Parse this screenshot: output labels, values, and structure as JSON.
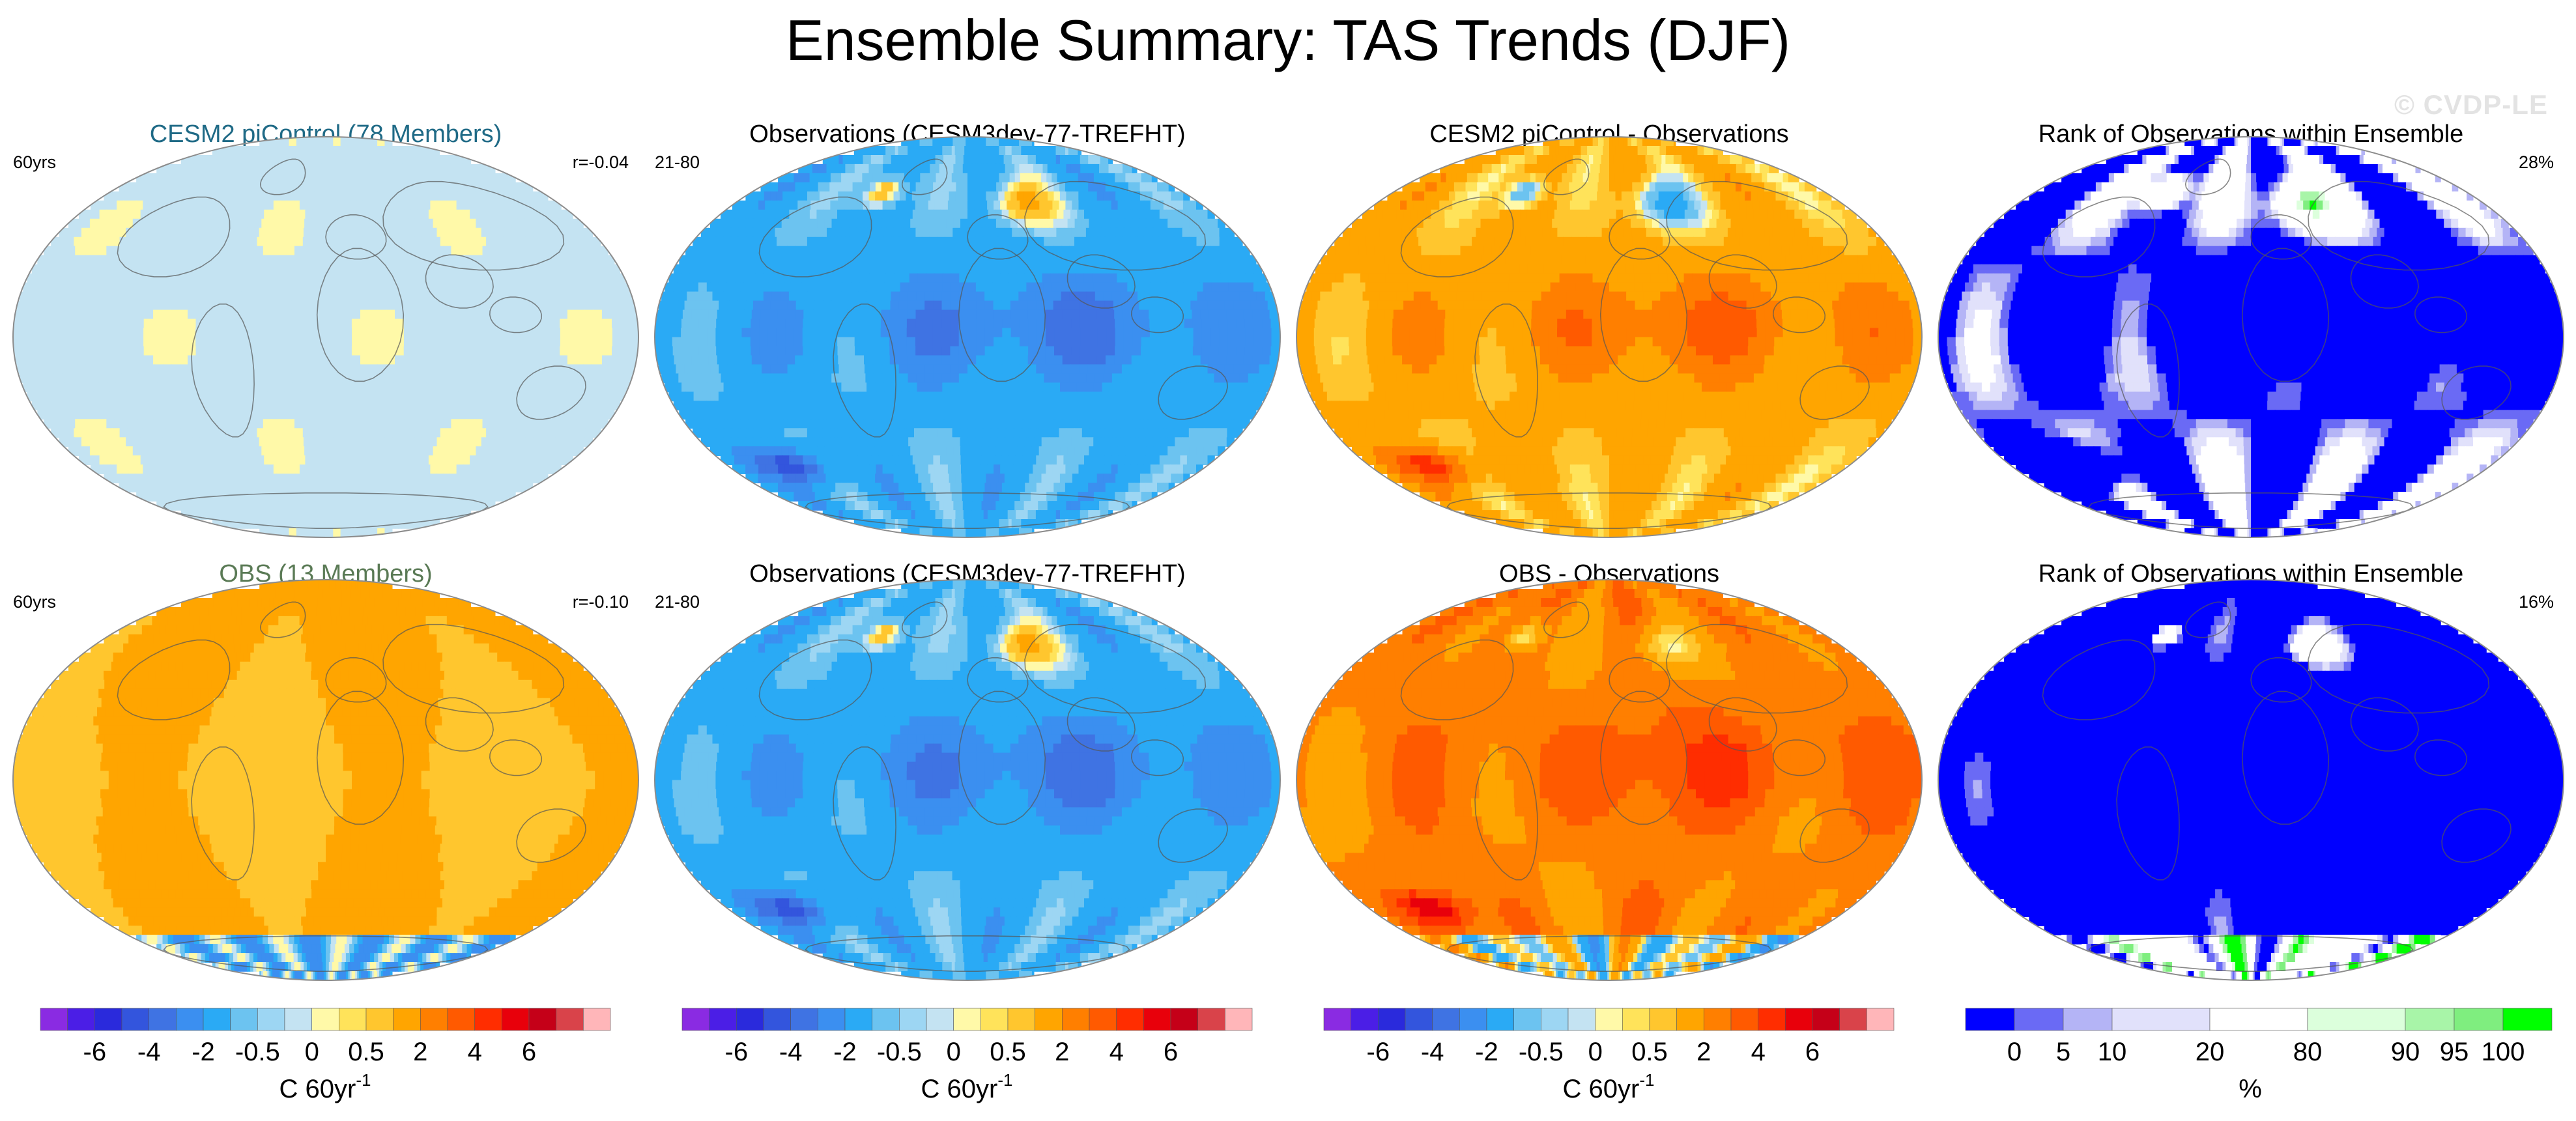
{
  "title": "Ensemble Summary: TAS Trends (DJF)",
  "watermark": "© CVDP-LE",
  "colors": {
    "ens_title": "#1f6a86",
    "obs_title": "#5a7a55",
    "text": "#000000",
    "map_border": "#8c8c8c",
    "land_outline": "#555555"
  },
  "chart_data": [
    {
      "type": "heatmap",
      "row": 1,
      "col": 1,
      "title": "CESM2 piControl (78 Members)",
      "title_color": "ens",
      "left_label": "60yrs",
      "right_label": "r=-0.04",
      "field": "ens_mean_pi",
      "colorbar": "trend"
    },
    {
      "type": "heatmap",
      "row": 1,
      "col": 2,
      "title": "Observations (CESM3dev-77-TREFHT)",
      "title_color": "black",
      "left_label": "21-80",
      "right_label": "",
      "field": "obs",
      "colorbar": "trend"
    },
    {
      "type": "heatmap",
      "row": 1,
      "col": 3,
      "title": "CESM2 piControl - Observations",
      "title_color": "black",
      "left_label": "",
      "right_label": "",
      "field": "diff_pi",
      "colorbar": "trend"
    },
    {
      "type": "heatmap",
      "row": 1,
      "col": 4,
      "title": "Rank of Observations within Ensemble",
      "title_color": "black",
      "left_label": "",
      "right_label": "28%",
      "field": "rank_pi",
      "colorbar": "rank"
    },
    {
      "type": "heatmap",
      "row": 2,
      "col": 1,
      "title": "OBS (13 Members)",
      "title_color": "obs",
      "left_label": "60yrs",
      "right_label": "r=-0.10",
      "field": "ens_mean_obs",
      "colorbar": "trend"
    },
    {
      "type": "heatmap",
      "row": 2,
      "col": 2,
      "title": "Observations (CESM3dev-77-TREFHT)",
      "title_color": "black",
      "left_label": "21-80",
      "right_label": "",
      "field": "obs",
      "colorbar": "trend"
    },
    {
      "type": "heatmap",
      "row": 2,
      "col": 3,
      "title": "OBS - Observations",
      "title_color": "black",
      "left_label": "",
      "right_label": "",
      "field": "diff_obs",
      "colorbar": "trend"
    },
    {
      "type": "heatmap",
      "row": 2,
      "col": 4,
      "title": "Rank of Observations within Ensemble",
      "title_color": "black",
      "left_label": "",
      "right_label": "16%",
      "field": "rank_obs",
      "colorbar": "rank"
    }
  ],
  "colorbars": {
    "trend": {
      "levels": [
        -8,
        -7,
        -6,
        -5,
        -4,
        -3,
        -2,
        -1,
        -0.5,
        -0.25,
        0,
        0.25,
        0.5,
        1,
        2,
        3,
        4,
        5,
        6,
        7,
        8
      ],
      "tick_labels": [
        "-6",
        "-4",
        "-2",
        "-0.5",
        "0",
        "0.5",
        "2",
        "4",
        "6"
      ],
      "tick_levels": [
        -6,
        -4,
        -2,
        -0.5,
        0,
        0.5,
        2,
        4,
        6
      ],
      "unit_label": "C 60yr",
      "unit_exponent": "-1",
      "colors": [
        "#8a2be2",
        "#4b1ee6",
        "#2a2adc",
        "#3355dd",
        "#3f73e3",
        "#3b8ff0",
        "#2aaaf5",
        "#6cc3f0",
        "#9dd6f3",
        "#c4e3f2",
        "#fff9a8",
        "#ffe35a",
        "#ffc62e",
        "#ffa500",
        "#ff7f00",
        "#ff5a00",
        "#ff2d00",
        "#e8000b",
        "#c50018",
        "#d9434a",
        "#ffb6b9"
      ]
    },
    "rank": {
      "tick_labels": [
        "0",
        "5",
        "10",
        "20",
        "80",
        "90",
        "95",
        "100"
      ],
      "tick_values": [
        0,
        5,
        10,
        20,
        80,
        90,
        95,
        100
      ],
      "unit_label": "%",
      "colors": [
        "#0000ff",
        "#6a6af5",
        "#b4b4f6",
        "#e1e1fb",
        "#ffffff",
        "#dcffdc",
        "#a8f5a8",
        "#7fee7f",
        "#00ff00"
      ]
    }
  }
}
